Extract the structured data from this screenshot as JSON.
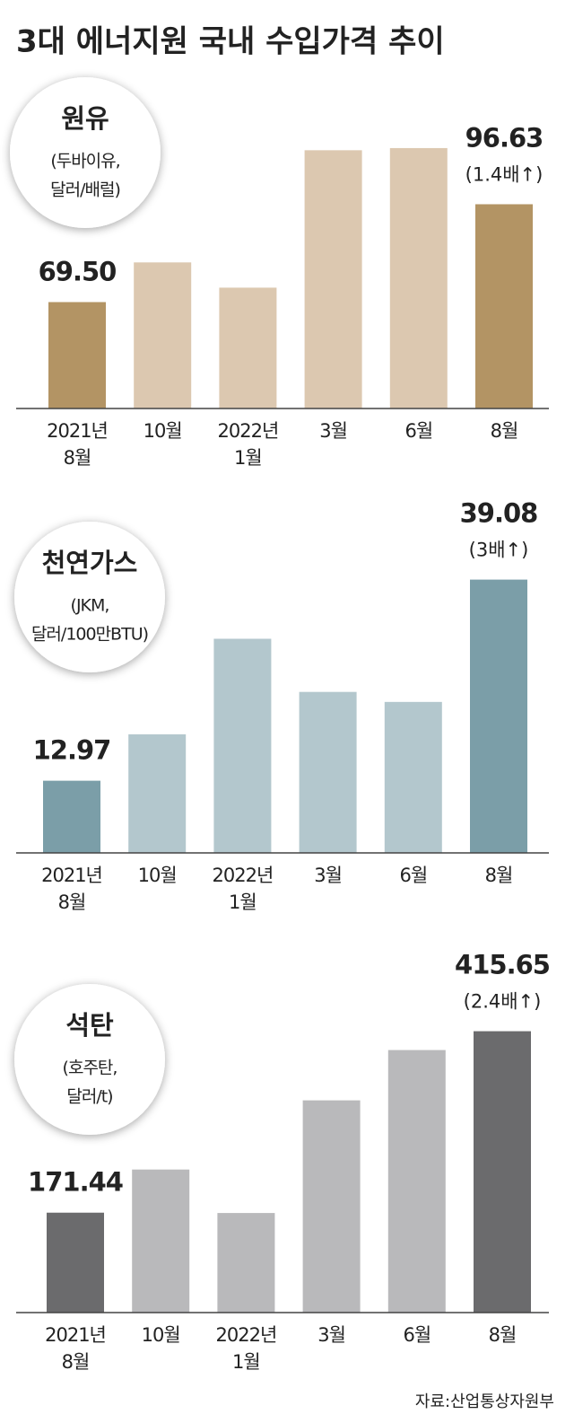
{
  "title": "3대 에너지원 국내 수입가격 추이",
  "source": "자료:산업통상자원부",
  "chart_data": [
    {
      "type": "bar",
      "title": "원유",
      "unit": [
        "(두바이유,",
        "달러/배럴)"
      ],
      "title_color": "#a88a5a",
      "categories": [
        "2021년 8월",
        "10월",
        "2022년 1월",
        "3월",
        "6월",
        "8월"
      ],
      "values": [
        69.5,
        80.5,
        73.5,
        111.6,
        112.2,
        96.63
      ],
      "value_labels": [
        "69.50",
        null,
        null,
        null,
        null,
        "96.63"
      ],
      "annotation": "(1.4배↑)",
      "colors": [
        "#b39464",
        "#dcc8b0",
        "#dcc8b0",
        "#dcc8b0",
        "#dcc8b0",
        "#b39464"
      ],
      "ylim": [
        40,
        120
      ]
    },
    {
      "type": "bar",
      "title": "천연가스",
      "unit": [
        "(JKM,",
        "달러/100만BTU)"
      ],
      "title_color": "#6f97a3",
      "categories": [
        "2021년 8월",
        "10월",
        "2022년 1월",
        "3월",
        "6월",
        "8월"
      ],
      "values": [
        12.97,
        19.0,
        31.4,
        24.5,
        23.2,
        39.08
      ],
      "value_labels": [
        "12.97",
        null,
        null,
        null,
        null,
        "39.08"
      ],
      "annotation": "(3배↑)",
      "colors": [
        "#7b9ea8",
        "#b3c7cd",
        "#b3c7cd",
        "#b3c7cd",
        "#b3c7cd",
        "#7b9ea8"
      ],
      "ylim": [
        3.6,
        40
      ]
    },
    {
      "type": "bar",
      "title": "석탄",
      "unit": [
        "(호주탄,",
        "달러/t)"
      ],
      "title_color": "#111111",
      "categories": [
        "2021년 8월",
        "10월",
        "2022년 1월",
        "3월",
        "6월",
        "8월"
      ],
      "values": [
        171.44,
        229.5,
        171,
        322.6,
        390.3,
        415.65
      ],
      "value_labels": [
        "171.44",
        null,
        null,
        null,
        null,
        "415.65"
      ],
      "annotation": "(2.4배↑)",
      "colors": [
        "#6b6b6d",
        "#b9b9bb",
        "#b9b9bb",
        "#b9b9bb",
        "#b9b9bb",
        "#6b6b6d"
      ],
      "ylim": [
        37,
        420
      ]
    }
  ]
}
